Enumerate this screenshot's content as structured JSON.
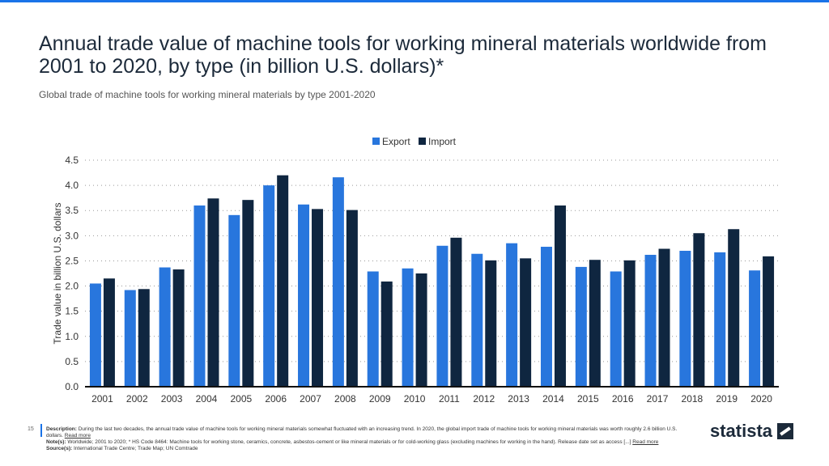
{
  "title": "Annual trade value of machine tools for working mineral materials worldwide from 2001 to 2020, by type (in billion U.S. dollars)*",
  "subtitle": "Global trade of machine tools for working mineral materials by type 2001-2020",
  "page_number": "15",
  "footer": {
    "description_label": "Description:",
    "description": "During the last two decades, the annual trade value of machine tools for working mineral materials somewhat fluctuated with an increasing trend. In 2020, the global import trade of machine tools for working mineral materials was worth roughly 2.6 billion U.S. dollars.",
    "read_more": "Read more",
    "notes_label": "Note(s):",
    "notes": "Worldwide; 2001 to 2020; * HS Code 8464: Machine tools for working stone, ceramics, concrete, asbestos-cement or like mineral materials or for cold-working glass (excluding machines for working in the hand). Release date set as access [...]",
    "sources_label": "Source(s):",
    "sources": "International Trade Centre; Trade Map; UN Comtrade"
  },
  "logo": "statista",
  "colors": {
    "export": "#2876dd",
    "import": "#0f2640"
  },
  "chart_data": {
    "type": "bar",
    "title": "Annual trade value of machine tools for working mineral materials worldwide from 2001 to 2020, by type (in billion U.S. dollars)*",
    "xlabel": "",
    "ylabel": "Trade value in billion U.S. dollars",
    "ylim": [
      0,
      4.5
    ],
    "yticks": [
      "0.0",
      "0.5",
      "1.0",
      "1.5",
      "2.0",
      "2.5",
      "3.0",
      "3.5",
      "4.0",
      "4.5"
    ],
    "grid": true,
    "legend": "top-center",
    "categories": [
      "2001",
      "2002",
      "2003",
      "2004",
      "2005",
      "2006",
      "2007",
      "2008",
      "2009",
      "2010",
      "2011",
      "2012",
      "2013",
      "2014",
      "2015",
      "2016",
      "2017",
      "2018",
      "2019",
      "2020"
    ],
    "series": [
      {
        "name": "Export",
        "values": [
          2.05,
          1.92,
          2.37,
          3.6,
          3.41,
          4.0,
          3.62,
          4.16,
          2.29,
          2.35,
          2.8,
          2.64,
          2.85,
          2.78,
          2.38,
          2.29,
          2.62,
          2.7,
          2.67,
          2.31
        ]
      },
      {
        "name": "Import",
        "values": [
          2.15,
          1.94,
          2.33,
          3.74,
          3.71,
          4.2,
          3.53,
          3.51,
          2.09,
          2.25,
          2.96,
          2.51,
          2.55,
          3.6,
          2.52,
          2.51,
          2.74,
          3.05,
          3.13,
          2.59
        ]
      }
    ]
  }
}
